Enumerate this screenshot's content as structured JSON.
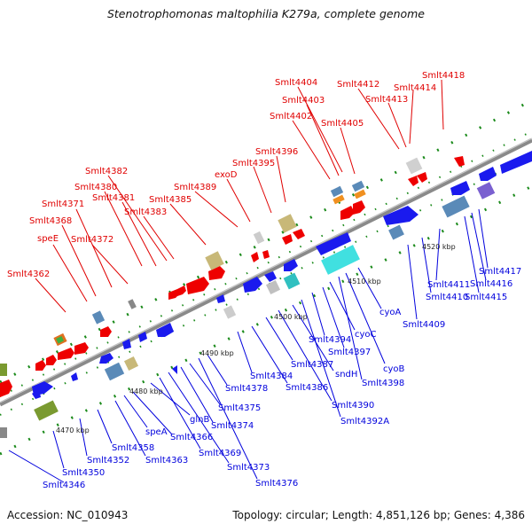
{
  "title": "Stenotrophomonas maltophilia K279a, complete genome",
  "footer": {
    "accession": "Accession: NC_010943",
    "stats": "Topology: circular; Length: 4,851,126 bp; Genes: 4,386"
  },
  "colors": {
    "forward_label": "#e00000",
    "reverse_label": "#0000dd",
    "backbone": "#888888",
    "tick": "#1a8a1a"
  },
  "scale_labels": [
    {
      "text": "4470 kbp"
    },
    {
      "text": "4480 kbp"
    },
    {
      "text": "4490 kbp"
    },
    {
      "text": "4500 kbp"
    },
    {
      "text": "4510 kbp"
    },
    {
      "text": "4520 kbp"
    }
  ],
  "forward_labels": [
    "Smlt4362",
    "speE",
    "Smlt4368",
    "Smlt4371",
    "Smlt4372",
    "Smlt4380",
    "Smlt4381",
    "Smlt4382",
    "Smlt4383",
    "Smlt4385",
    "Smlt4389",
    "exoD",
    "Smlt4395",
    "Smlt4396",
    "Smlt4402",
    "Smlt4403",
    "Smlt4404",
    "Smlt4405",
    "Smlt4412",
    "Smlt4413",
    "Smlt4414",
    "Smlt4418"
  ],
  "reverse_labels": [
    "Smlt4346",
    "Smlt4350",
    "Smlt4352",
    "Smlt4358",
    "Smlt4363",
    "speA",
    "Smlt4366",
    "glnB",
    "Smlt4369",
    "Smlt4373",
    "Smlt4374",
    "Smlt4375",
    "Smlt4376",
    "Smlt4378",
    "Smlt4384",
    "Smlt4386",
    "Smlt4387",
    "Smlt4390",
    "sndH",
    "Smlt4392A",
    "Smlt4394",
    "Smlt4397",
    "cyoC",
    "Smlt4398",
    "cyoB",
    "cyoA",
    "Smlt4409",
    "Smlt4410",
    "Smlt4411",
    "Smlt4415",
    "Smlt4416",
    "Smlt4417"
  ]
}
